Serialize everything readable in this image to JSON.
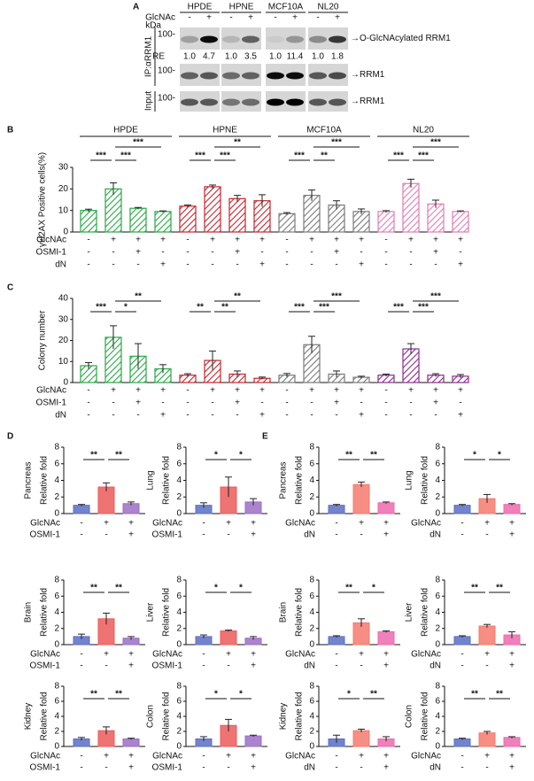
{
  "blot": {
    "panel": "A",
    "cell_lines": [
      "HPDE",
      "HPNE",
      "MCF10A",
      "NL20"
    ],
    "treatment": "GlcNAc",
    "signs": [
      "-",
      "+",
      "-",
      "+",
      "-",
      "+",
      "-",
      "+"
    ],
    "unit": "kDa",
    "markers": [
      "100-",
      "100-",
      "100-"
    ],
    "ip_label": "IP:αRRM1",
    "input_label": "Input",
    "re_label": "RE",
    "re_values": [
      "1.0",
      "4.7",
      "1.0",
      "3.5",
      "1.0",
      "11.4",
      "1.0",
      "1.8"
    ],
    "band_labels": [
      "→O-GlcNAcylated RRM1",
      "→RRM1",
      "→RRM1"
    ]
  },
  "chart_data": [
    {
      "type": "grouped_bar",
      "panel": "B",
      "ylabel": "γH2AX Positive cells(%)",
      "ylim": [
        0,
        30
      ],
      "yticks": [
        0,
        10,
        20,
        30
      ],
      "hatch": true,
      "groups": [
        {
          "name": "HPDE",
          "color": "#27a844",
          "values": [
            10,
            20,
            11,
            9.5
          ],
          "errors": [
            0.6,
            2.8,
            0.4,
            0.3
          ],
          "significance": [
            "***",
            "***",
            "***"
          ]
        },
        {
          "name": "HPNE",
          "color": "#c4262e",
          "values": [
            12,
            21,
            15.5,
            14.5
          ],
          "errors": [
            0.5,
            0.8,
            1.5,
            2.8
          ],
          "significance": [
            "***",
            "***",
            "**"
          ]
        },
        {
          "name": "MCF10A",
          "color": "#7a7a7a",
          "values": [
            8.5,
            17,
            12.5,
            9.5
          ],
          "errors": [
            0.5,
            2.5,
            2,
            1.2
          ],
          "significance": [
            "***",
            "**",
            "***"
          ]
        },
        {
          "name": "NL20",
          "color": "#e07db5",
          "values": [
            9.5,
            22.5,
            13,
            9.5
          ],
          "errors": [
            0.4,
            2,
            1.8,
            0.3
          ],
          "significance": [
            "***",
            "***",
            "***"
          ]
        }
      ],
      "conditions": [
        {
          "name": "GlcNAc",
          "signs": [
            "-",
            "+",
            "+",
            "+"
          ]
        },
        {
          "name": "OSMI-1",
          "signs": [
            "-",
            "-",
            "+",
            "-"
          ]
        },
        {
          "name": "dN",
          "signs": [
            "-",
            "-",
            "-",
            "+"
          ]
        }
      ]
    },
    {
      "type": "grouped_bar",
      "panel": "C",
      "ylabel": "Colony number",
      "ylim": [
        0,
        40
      ],
      "yticks": [
        0,
        10,
        20,
        30,
        40
      ],
      "hatch": true,
      "groups": [
        {
          "color": "#27a844",
          "values": [
            8,
            21.5,
            12.5,
            6.5
          ],
          "errors": [
            1.5,
            5.5,
            6,
            2
          ],
          "significance": [
            "***",
            "*",
            "**"
          ]
        },
        {
          "color": "#c4262e",
          "values": [
            3.5,
            10.5,
            4,
            2
          ],
          "errors": [
            0.7,
            4.5,
            1.5,
            0.6
          ],
          "significance": [
            "**",
            "**",
            "**"
          ]
        },
        {
          "color": "#7a7a7a",
          "values": [
            3.5,
            18,
            4,
            2.5
          ],
          "errors": [
            0.8,
            4,
            1.5,
            0.5
          ],
          "significance": [
            "***",
            "***",
            "***"
          ]
        },
        {
          "color": "#8b2c8c",
          "values": [
            3.5,
            16,
            3.5,
            3
          ],
          "errors": [
            0.5,
            2.5,
            0.7,
            0.8
          ],
          "significance": [
            "***",
            "***",
            "***"
          ]
        }
      ],
      "conditions": [
        {
          "name": "GlcNAc",
          "signs": [
            "-",
            "+",
            "+",
            "+"
          ]
        },
        {
          "name": "OSMI-1",
          "signs": [
            "-",
            "-",
            "+",
            "-"
          ]
        },
        {
          "name": "dN",
          "signs": [
            "-",
            "-",
            "-",
            "+"
          ]
        }
      ]
    },
    {
      "type": "bar",
      "panel": "D",
      "title": "Pancreas",
      "ylabel": "Relative fold",
      "ylim": [
        0,
        8
      ],
      "yticks": [
        0,
        2,
        4,
        6,
        8
      ],
      "colors": [
        "#5b6fc4",
        "#ec5b5b",
        "#9b6ec4"
      ],
      "values": [
        1,
        3.2,
        1.2
      ],
      "errors": [
        0.1,
        0.5,
        0.2
      ],
      "significance": [
        "**",
        "**"
      ],
      "conditions": [
        {
          "name": "GlcNAc",
          "signs": [
            "-",
            "+",
            "+"
          ]
        },
        {
          "name": "OSMI-1",
          "signs": [
            "-",
            "-",
            "+"
          ]
        }
      ]
    },
    {
      "type": "bar",
      "title": "Lung",
      "ylabel": "Relative fold",
      "ylim": [
        0,
        8
      ],
      "yticks": [
        0,
        2,
        4,
        6,
        8
      ],
      "colors": [
        "#5b6fc4",
        "#ec5b5b",
        "#9b6ec4"
      ],
      "values": [
        1,
        3.2,
        1.4
      ],
      "errors": [
        0.3,
        1.2,
        0.4
      ],
      "significance": [
        "*",
        "*"
      ],
      "conditions": [
        {
          "name": "GlcNAc",
          "signs": [
            "-",
            "+",
            "+"
          ]
        },
        {
          "name": "OSMI-1",
          "signs": [
            "-",
            "-",
            "+"
          ]
        }
      ]
    },
    {
      "type": "bar",
      "title": "Brain",
      "ylabel": "Relative fold",
      "ylim": [
        0,
        8
      ],
      "yticks": [
        0,
        2,
        4,
        6,
        8
      ],
      "colors": [
        "#5b6fc4",
        "#ec5b5b",
        "#9b6ec4"
      ],
      "values": [
        1,
        3.2,
        0.8
      ],
      "errors": [
        0.3,
        0.7,
        0.2
      ],
      "significance": [
        "**",
        "**"
      ],
      "conditions": [
        {
          "name": "GlcNAc",
          "signs": [
            "-",
            "+",
            "+"
          ]
        },
        {
          "name": "OSMI-1",
          "signs": [
            "-",
            "-",
            "+"
          ]
        }
      ]
    },
    {
      "type": "bar",
      "title": "Liver",
      "ylabel": "Relative fold",
      "ylim": [
        0,
        8
      ],
      "yticks": [
        0,
        2,
        4,
        6,
        8
      ],
      "colors": [
        "#5b6fc4",
        "#ec5b5b",
        "#9b6ec4"
      ],
      "values": [
        1,
        1.7,
        0.8
      ],
      "errors": [
        0.2,
        0.1,
        0.2
      ],
      "significance": [
        "*",
        "*"
      ],
      "conditions": [
        {
          "name": "GlcNAc",
          "signs": [
            "-",
            "+",
            "+"
          ]
        },
        {
          "name": "OSMI-1",
          "signs": [
            "-",
            "-",
            "+"
          ]
        }
      ]
    },
    {
      "type": "bar",
      "title": "Kidney",
      "ylabel": "Relative fold",
      "ylim": [
        0,
        8
      ],
      "yticks": [
        0,
        2,
        4,
        6,
        8
      ],
      "colors": [
        "#5b6fc4",
        "#ec5b5b",
        "#9b6ec4"
      ],
      "values": [
        1,
        2.1,
        1
      ],
      "errors": [
        0.2,
        0.5,
        0.1
      ],
      "significance": [
        "**",
        "**"
      ],
      "conditions": [
        {
          "name": "GlcNAc",
          "signs": [
            "-",
            "+",
            "+"
          ]
        },
        {
          "name": "OSMI-1",
          "signs": [
            "-",
            "-",
            "+"
          ]
        }
      ]
    },
    {
      "type": "bar",
      "title": "Colon",
      "ylabel": "Relative fold",
      "ylim": [
        0,
        8
      ],
      "yticks": [
        0,
        2,
        4,
        6,
        8
      ],
      "colors": [
        "#5b6fc4",
        "#ec5b5b",
        "#9b6ec4"
      ],
      "values": [
        1,
        2.8,
        1.4
      ],
      "errors": [
        0.3,
        0.8,
        0.1
      ],
      "significance": [
        "*",
        "*"
      ],
      "conditions": [
        {
          "name": "GlcNAc",
          "signs": [
            "-",
            "+",
            "+"
          ]
        },
        {
          "name": "OSMI-1",
          "signs": [
            "-",
            "-",
            "+"
          ]
        }
      ]
    },
    {
      "type": "bar",
      "panel": "E",
      "title": "Pancreas",
      "ylabel": "Relative fold",
      "ylim": [
        0,
        8
      ],
      "yticks": [
        0,
        2,
        4,
        6,
        8
      ],
      "colors": [
        "#5b6fc4",
        "#f47a6e",
        "#ec6aae"
      ],
      "values": [
        1,
        3.5,
        1.3
      ],
      "errors": [
        0.1,
        0.3,
        0.1
      ],
      "significance": [
        "**",
        "**"
      ],
      "conditions": [
        {
          "name": "GlcNAc",
          "signs": [
            "-",
            "+",
            "+"
          ]
        },
        {
          "name": "dN",
          "signs": [
            "-",
            "-",
            "+"
          ]
        }
      ]
    },
    {
      "type": "bar",
      "title": "Lung",
      "ylabel": "Relative fold",
      "ylim": [
        0,
        8
      ],
      "yticks": [
        0,
        2,
        4,
        6,
        8
      ],
      "colors": [
        "#5b6fc4",
        "#f47a6e",
        "#ec6aae"
      ],
      "values": [
        1,
        1.8,
        1.1
      ],
      "errors": [
        0.1,
        0.5,
        0.1
      ],
      "significance": [
        "*",
        "*"
      ],
      "conditions": [
        {
          "name": "GlcNAc",
          "signs": [
            "-",
            "+",
            "+"
          ]
        },
        {
          "name": "dN",
          "signs": [
            "-",
            "-",
            "+"
          ]
        }
      ]
    },
    {
      "type": "bar",
      "title": "Brain",
      "ylabel": "Relative fold",
      "ylim": [
        0,
        8
      ],
      "yticks": [
        0,
        2,
        4,
        6,
        8
      ],
      "colors": [
        "#5b6fc4",
        "#f47a6e",
        "#ec6aae"
      ],
      "values": [
        1,
        2.7,
        1.6
      ],
      "errors": [
        0.1,
        0.5,
        0.1
      ],
      "significance": [
        "**",
        "*"
      ],
      "conditions": [
        {
          "name": "GlcNAc",
          "signs": [
            "-",
            "+",
            "+"
          ]
        },
        {
          "name": "dN",
          "signs": [
            "-",
            "-",
            "+"
          ]
        }
      ]
    },
    {
      "type": "bar",
      "title": "Liver",
      "ylabel": "Relative fold",
      "ylim": [
        0,
        8
      ],
      "yticks": [
        0,
        2,
        4,
        6,
        8
      ],
      "colors": [
        "#5b6fc4",
        "#f47a6e",
        "#ec6aae"
      ],
      "values": [
        1,
        2.3,
        1.2
      ],
      "errors": [
        0.1,
        0.2,
        0.4
      ],
      "significance": [
        "**",
        "**"
      ],
      "conditions": [
        {
          "name": "GlcNAc",
          "signs": [
            "-",
            "+",
            "+"
          ]
        },
        {
          "name": "dN",
          "signs": [
            "-",
            "-",
            "+"
          ]
        }
      ]
    },
    {
      "type": "bar",
      "title": "Kidney",
      "ylabel": "Relative fold",
      "ylim": [
        0,
        8
      ],
      "yticks": [
        0,
        2,
        4,
        6,
        8
      ],
      "colors": [
        "#5b6fc4",
        "#f47a6e",
        "#ec6aae"
      ],
      "values": [
        1,
        2.1,
        1
      ],
      "errors": [
        0.5,
        0.2,
        0.3
      ],
      "significance": [
        "*",
        "**"
      ],
      "conditions": [
        {
          "name": "GlcNAc",
          "signs": [
            "-",
            "+",
            "+"
          ]
        },
        {
          "name": "dN",
          "signs": [
            "-",
            "-",
            "+"
          ]
        }
      ]
    },
    {
      "type": "bar",
      "title": "Colon",
      "ylabel": "Relative fold",
      "ylim": [
        0,
        8
      ],
      "yticks": [
        0,
        2,
        4,
        6,
        8
      ],
      "colors": [
        "#5b6fc4",
        "#f47a6e",
        "#ec6aae"
      ],
      "values": [
        1,
        1.8,
        1.2
      ],
      "errors": [
        0.1,
        0.2,
        0.1
      ],
      "significance": [
        "**",
        "**"
      ],
      "conditions": [
        {
          "name": "GlcNAc",
          "signs": [
            "-",
            "+",
            "+"
          ]
        },
        {
          "name": "dN",
          "signs": [
            "-",
            "-",
            "+"
          ]
        }
      ]
    }
  ]
}
